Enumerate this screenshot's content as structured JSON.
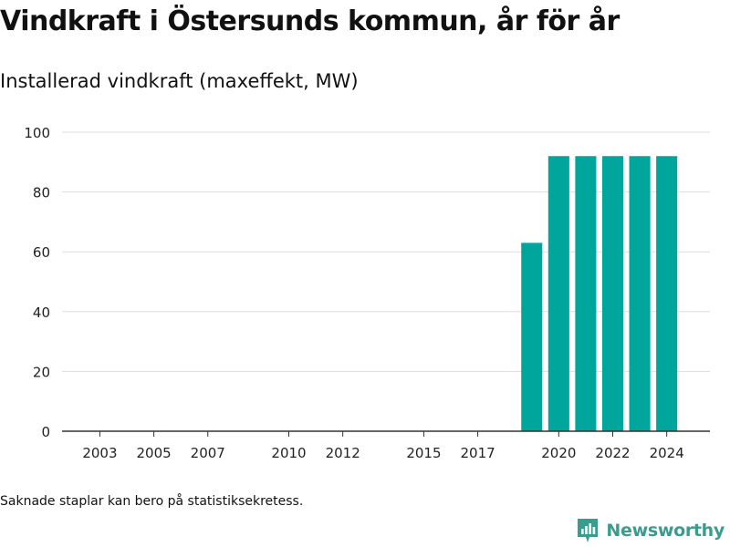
{
  "title": "Vindkraft i Östersunds kommun, år för år",
  "subtitle": "Installerad vindkraft (maxeffekt, MW)",
  "footnote": "Saknade staplar kan bero på statistiksekretess.",
  "brand": {
    "name": "Newsworthy",
    "icon": "newsworthy-logo-icon",
    "color": "#3a9b8f"
  },
  "chart_data": {
    "type": "bar",
    "title": "Installerad vindkraft (maxeffekt, MW)",
    "xlabel": "",
    "ylabel": "",
    "x": [
      2019,
      2020,
      2021,
      2022,
      2023,
      2024
    ],
    "values": [
      63,
      92,
      92,
      92,
      92,
      92
    ],
    "xlim": [
      2001.6,
      2025.6
    ],
    "ylim": [
      0,
      100
    ],
    "yticks": [
      0,
      20,
      40,
      60,
      80,
      100
    ],
    "xticks": [
      2003,
      2005,
      2007,
      2010,
      2012,
      2015,
      2017,
      2020,
      2022,
      2024
    ],
    "bar_color": "#00a59c",
    "grid": true,
    "legend": "none"
  }
}
